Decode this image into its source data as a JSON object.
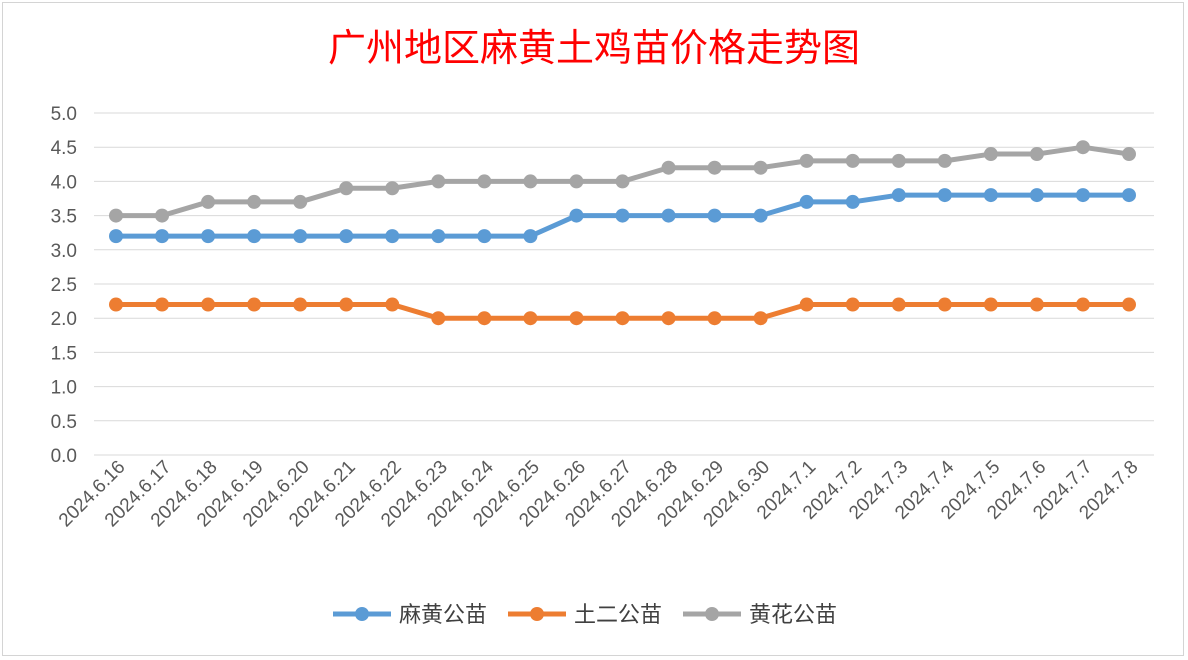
{
  "chart_data": {
    "type": "line",
    "title": "广州地区麻黄土鸡苗价格走势图",
    "xlabel": "",
    "ylabel": "",
    "ylim": [
      0,
      5
    ],
    "ystep": 0.5,
    "grid": true,
    "legend_position": "bottom",
    "x": [
      "2024.6.16",
      "2024.6.17",
      "2024.6.18",
      "2024.6.19",
      "2024.6.20",
      "2024.6.21",
      "2024.6.22",
      "2024.6.23",
      "2024.6.24",
      "2024.6.25",
      "2024.6.26",
      "2024.6.27",
      "2024.6.28",
      "2024.6.29",
      "2024.6.30",
      "2024.7.1",
      "2024.7.2",
      "2024.7.3",
      "2024.7.4",
      "2024.7.5",
      "2024.7.6",
      "2024.7.7",
      "2024.7.8"
    ],
    "y_ticks": [
      "0.0",
      "0.5",
      "1.0",
      "1.5",
      "2.0",
      "2.5",
      "3.0",
      "3.5",
      "4.0",
      "4.5",
      "5.0"
    ],
    "series": [
      {
        "name": "麻黄公苗",
        "color": "#5b9bd5",
        "values": [
          3.2,
          3.2,
          3.2,
          3.2,
          3.2,
          3.2,
          3.2,
          3.2,
          3.2,
          3.2,
          3.5,
          3.5,
          3.5,
          3.5,
          3.5,
          3.7,
          3.7,
          3.8,
          3.8,
          3.8,
          3.8,
          3.8,
          3.8
        ]
      },
      {
        "name": "土二公苗",
        "color": "#ed7d31",
        "values": [
          2.2,
          2.2,
          2.2,
          2.2,
          2.2,
          2.2,
          2.2,
          2.0,
          2.0,
          2.0,
          2.0,
          2.0,
          2.0,
          2.0,
          2.0,
          2.2,
          2.2,
          2.2,
          2.2,
          2.2,
          2.2,
          2.2,
          2.2
        ]
      },
      {
        "name": "黄花公苗",
        "color": "#a5a5a5",
        "values": [
          3.5,
          3.5,
          3.7,
          3.7,
          3.7,
          3.9,
          3.9,
          4.0,
          4.0,
          4.0,
          4.0,
          4.0,
          4.2,
          4.2,
          4.2,
          4.3,
          4.3,
          4.3,
          4.3,
          4.4,
          4.4,
          4.5,
          4.4
        ]
      }
    ]
  }
}
